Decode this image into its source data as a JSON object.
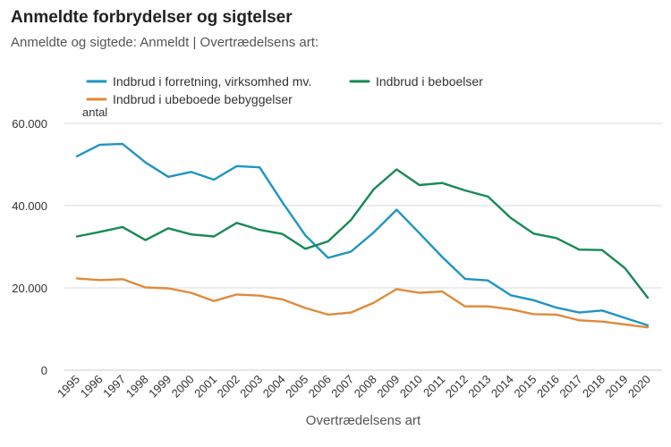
{
  "header": {
    "title": "Anmeldte forbrydelser og sigtelser",
    "subtitle": "Anmeldte og sigtede: Anmeldt | Overtrædelsens art:"
  },
  "chart_data": {
    "type": "line",
    "title": "Anmeldte forbrydelser og sigtelser",
    "subtitle": "Anmeldte og sigtede: Anmeldt | Overtrædelsens art:",
    "xlabel": "Overtrædelsens art",
    "ylabel": "antal",
    "ylim": [
      0,
      60000
    ],
    "yticks": [
      0,
      20000,
      40000,
      60000
    ],
    "ytick_labels": [
      "0",
      "20.000",
      "40.000",
      "60.000"
    ],
    "grid": true,
    "legend_position": "top-left",
    "categories": [
      "1995",
      "1996",
      "1997",
      "1998",
      "1999",
      "2000",
      "2001",
      "2002",
      "2003",
      "2004",
      "2005",
      "2006",
      "2007",
      "2008",
      "2009",
      "2010",
      "2011",
      "2012",
      "2013",
      "2014",
      "2015",
      "2016",
      "2017",
      "2018",
      "2019",
      "2020"
    ],
    "series": [
      {
        "name": "Indbrud i forretning, virksomhed mv.",
        "color": "#1f95c4",
        "values": [
          52000,
          54800,
          55000,
          50500,
          47000,
          48200,
          46300,
          49600,
          49300,
          40800,
          32800,
          27300,
          28800,
          33500,
          39000,
          33300,
          27500,
          22200,
          21800,
          18200,
          17000,
          15200,
          14000,
          14500,
          12700,
          10900
        ]
      },
      {
        "name": "Indbrud i beboelser",
        "color": "#178a55",
        "values": [
          32500,
          33600,
          34800,
          31600,
          34500,
          33000,
          32500,
          35800,
          34100,
          33100,
          29500,
          31300,
          36500,
          44000,
          48800,
          45000,
          45500,
          43700,
          42200,
          37000,
          33200,
          32100,
          29300,
          29200,
          24800,
          17600
        ]
      },
      {
        "name": "Indbrud i ubeboede bebyggelser",
        "color": "#e08a3a",
        "values": [
          22300,
          21900,
          22100,
          20100,
          19900,
          18800,
          16800,
          18400,
          18100,
          17200,
          15100,
          13500,
          14000,
          16400,
          19700,
          18800,
          19100,
          15500,
          15500,
          14800,
          13600,
          13500,
          12100,
          11800,
          11100,
          10400
        ]
      }
    ]
  }
}
